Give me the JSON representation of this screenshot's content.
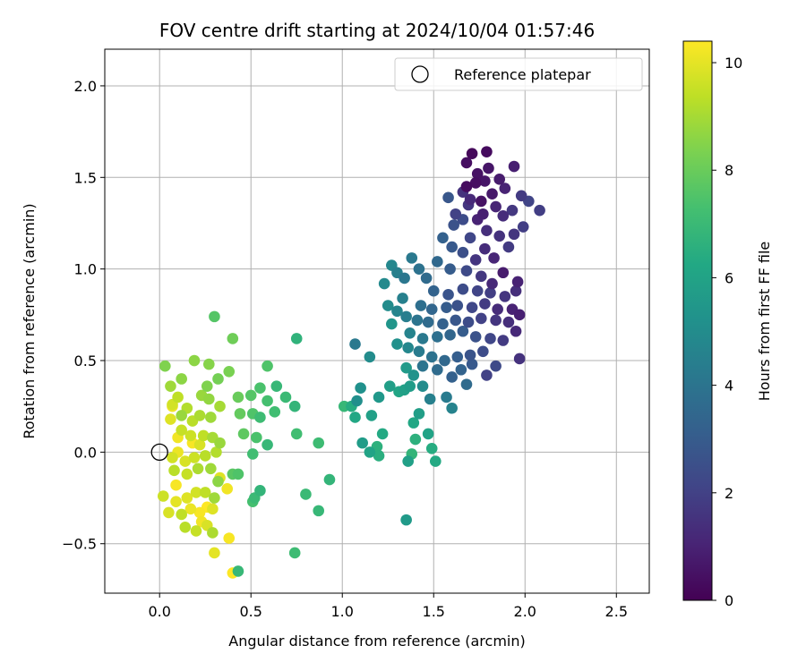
{
  "chart_data": {
    "type": "scatter",
    "title": "FOV centre drift starting at 2024/10/04 01:57:46",
    "xlabel": "Angular distance from reference (arcmin)",
    "ylabel": "Rotation from reference (arcmin)",
    "xlim": [
      -0.3,
      2.68
    ],
    "ylim": [
      -0.77,
      2.2
    ],
    "xticks": [
      0.0,
      0.5,
      1.0,
      1.5,
      2.0,
      2.5
    ],
    "xtick_labels": [
      "0.0",
      "0.5",
      "1.0",
      "1.5",
      "2.0",
      "2.5"
    ],
    "yticks": [
      -0.5,
      0.0,
      0.5,
      1.0,
      1.5,
      2.0
    ],
    "ytick_labels": [
      "−0.5",
      "0.0",
      "0.5",
      "1.0",
      "1.5",
      "2.0"
    ],
    "grid": true,
    "legend": {
      "position": "top-right",
      "entries": [
        "Reference platepar"
      ]
    },
    "reference_point": {
      "x": 0.0,
      "y": 0.0,
      "label": "Reference platepar"
    },
    "colorbar": {
      "label": "Hours from first FF file",
      "range": [
        0,
        10.4
      ],
      "ticks": [
        0,
        2,
        4,
        6,
        8,
        10
      ],
      "tick_labels": [
        "0",
        "2",
        "4",
        "6",
        "8",
        "10"
      ],
      "colormap": "viridis"
    },
    "points": [
      [
        1.71,
        1.63,
        0.2
      ],
      [
        1.79,
        1.64,
        0.3
      ],
      [
        1.68,
        1.58,
        0.4
      ],
      [
        1.74,
        1.52,
        0.5
      ],
      [
        1.8,
        1.55,
        0.6
      ],
      [
        1.86,
        1.49,
        0.8
      ],
      [
        1.78,
        1.48,
        0.6
      ],
      [
        1.73,
        1.47,
        0.4
      ],
      [
        1.68,
        1.45,
        0.3
      ],
      [
        1.94,
        1.56,
        0.9
      ],
      [
        1.76,
        1.37,
        0.5
      ],
      [
        1.82,
        1.41,
        0.7
      ],
      [
        1.89,
        1.44,
        1.0
      ],
      [
        1.66,
        1.42,
        1.5
      ],
      [
        1.7,
        1.38,
        1.2
      ],
      [
        1.98,
        1.4,
        1.8
      ],
      [
        1.84,
        1.34,
        1.1
      ],
      [
        1.77,
        1.3,
        0.9
      ],
      [
        1.69,
        1.35,
        1.6
      ],
      [
        1.62,
        1.3,
        2.0
      ],
      [
        1.88,
        1.29,
        1.3
      ],
      [
        1.93,
        1.32,
        1.7
      ],
      [
        2.02,
        1.37,
        2.1
      ],
      [
        2.08,
        1.32,
        1.9
      ],
      [
        1.74,
        1.27,
        1.0
      ],
      [
        1.58,
        1.39,
        2.8
      ],
      [
        1.66,
        1.27,
        2.4
      ],
      [
        1.61,
        1.24,
        2.6
      ],
      [
        1.79,
        1.21,
        1.4
      ],
      [
        1.86,
        1.18,
        1.5
      ],
      [
        1.94,
        1.19,
        1.6
      ],
      [
        1.99,
        1.23,
        1.9
      ],
      [
        1.91,
        1.12,
        1.8
      ],
      [
        1.7,
        1.17,
        2.2
      ],
      [
        1.78,
        1.11,
        1.3
      ],
      [
        1.83,
        1.06,
        1.1
      ],
      [
        1.73,
        1.05,
        1.6
      ],
      [
        1.66,
        1.09,
        2.5
      ],
      [
        1.6,
        1.12,
        2.9
      ],
      [
        1.55,
        1.17,
        3.2
      ],
      [
        1.52,
        1.04,
        3.5
      ],
      [
        1.59,
        1.0,
        3.0
      ],
      [
        1.68,
        0.99,
        2.3
      ],
      [
        1.76,
        0.96,
        1.7
      ],
      [
        1.82,
        0.92,
        1.2
      ],
      [
        1.88,
        0.98,
        0.8
      ],
      [
        1.96,
        0.93,
        1.0
      ],
      [
        1.95,
        0.88,
        1.4
      ],
      [
        1.89,
        0.85,
        1.6
      ],
      [
        1.81,
        0.87,
        1.9
      ],
      [
        1.74,
        0.88,
        2.1
      ],
      [
        1.66,
        0.89,
        2.4
      ],
      [
        1.58,
        0.86,
        2.7
      ],
      [
        1.5,
        0.88,
        3.3
      ],
      [
        1.46,
        0.95,
        3.6
      ],
      [
        1.42,
        1.0,
        3.9
      ],
      [
        1.38,
        1.06,
        4.2
      ],
      [
        1.34,
        0.95,
        4.1
      ],
      [
        1.3,
        0.98,
        4.5
      ],
      [
        1.27,
        1.02,
        4.8
      ],
      [
        1.43,
        0.8,
        3.8
      ],
      [
        1.49,
        0.78,
        3.4
      ],
      [
        1.57,
        0.79,
        3.0
      ],
      [
        1.63,
        0.8,
        2.6
      ],
      [
        1.71,
        0.79,
        2.2
      ],
      [
        1.78,
        0.81,
        1.8
      ],
      [
        1.85,
        0.78,
        1.3
      ],
      [
        1.93,
        0.78,
        1.0
      ],
      [
        1.97,
        0.75,
        0.9
      ],
      [
        1.91,
        0.71,
        1.4
      ],
      [
        1.84,
        0.72,
        1.6
      ],
      [
        1.76,
        0.73,
        2.0
      ],
      [
        1.69,
        0.71,
        2.4
      ],
      [
        1.62,
        0.72,
        2.8
      ],
      [
        1.55,
        0.7,
        3.2
      ],
      [
        1.47,
        0.71,
        3.6
      ],
      [
        1.41,
        0.72,
        4.0
      ],
      [
        1.35,
        0.74,
        4.4
      ],
      [
        1.3,
        0.77,
        4.7
      ],
      [
        1.25,
        0.8,
        5.0
      ],
      [
        1.37,
        0.65,
        4.6
      ],
      [
        1.44,
        0.62,
        4.2
      ],
      [
        1.52,
        0.63,
        3.8
      ],
      [
        1.59,
        0.64,
        3.4
      ],
      [
        1.66,
        0.66,
        3.0
      ],
      [
        1.73,
        0.63,
        2.6
      ],
      [
        1.81,
        0.62,
        2.2
      ],
      [
        1.88,
        0.61,
        1.8
      ],
      [
        1.95,
        0.66,
        1.2
      ],
      [
        1.77,
        0.55,
        2.4
      ],
      [
        1.7,
        0.53,
        2.7
      ],
      [
        1.63,
        0.52,
        3.1
      ],
      [
        1.56,
        0.5,
        3.5
      ],
      [
        1.49,
        0.52,
        3.9
      ],
      [
        1.42,
        0.55,
        4.3
      ],
      [
        1.36,
        0.57,
        4.8
      ],
      [
        1.3,
        0.59,
        5.2
      ],
      [
        1.27,
        0.7,
        5.4
      ],
      [
        1.23,
        0.92,
        4.9
      ],
      [
        1.33,
        0.84,
        4.5
      ],
      [
        1.44,
        0.47,
        4.0
      ],
      [
        1.52,
        0.45,
        3.6
      ],
      [
        1.6,
        0.41,
        3.2
      ],
      [
        1.68,
        0.37,
        3.6
      ],
      [
        1.79,
        0.42,
        2.0
      ],
      [
        1.84,
        0.47,
        2.3
      ],
      [
        1.97,
        0.51,
        1.5
      ],
      [
        1.71,
        0.48,
        2.9
      ],
      [
        1.65,
        0.45,
        3.3
      ],
      [
        1.57,
        0.3,
        4.3
      ],
      [
        1.6,
        0.24,
        4.6
      ],
      [
        1.48,
        0.29,
        4.5
      ],
      [
        1.35,
        0.46,
        5.6
      ],
      [
        1.39,
        0.42,
        5.3
      ],
      [
        1.44,
        0.36,
        5.0
      ],
      [
        1.37,
        0.36,
        5.7
      ],
      [
        1.34,
        0.34,
        5.9
      ],
      [
        1.31,
        0.33,
        6.1
      ],
      [
        1.26,
        0.36,
        5.8
      ],
      [
        1.2,
        0.3,
        5.5
      ],
      [
        1.16,
        0.2,
        5.9
      ],
      [
        1.22,
        0.1,
        6.3
      ],
      [
        1.19,
        0.03,
        6.6
      ],
      [
        1.15,
        0.0,
        6.0
      ],
      [
        1.11,
        0.05,
        5.7
      ],
      [
        1.07,
        0.19,
        6.2
      ],
      [
        1.05,
        0.25,
        6.4
      ],
      [
        1.08,
        0.28,
        5.1
      ],
      [
        1.1,
        0.35,
        5.2
      ],
      [
        1.07,
        0.59,
        4.2
      ],
      [
        1.15,
        0.52,
        5.0
      ],
      [
        1.39,
        0.16,
        6.2
      ],
      [
        1.42,
        0.21,
        5.8
      ],
      [
        1.47,
        0.1,
        6.0
      ],
      [
        1.49,
        0.02,
        6.4
      ],
      [
        1.51,
        -0.05,
        6.3
      ],
      [
        1.4,
        0.07,
        6.6
      ],
      [
        1.38,
        -0.01,
        6.8
      ],
      [
        1.36,
        -0.05,
        5.9
      ],
      [
        1.35,
        -0.37,
        5.6
      ],
      [
        1.2,
        -0.02,
        6.5
      ],
      [
        1.01,
        0.25,
        6.9
      ],
      [
        0.93,
        -0.15,
        6.8
      ],
      [
        0.87,
        0.05,
        7.1
      ],
      [
        0.8,
        -0.23,
        7.0
      ],
      [
        0.87,
        -0.32,
        6.9
      ],
      [
        0.74,
        -0.55,
        7.1
      ],
      [
        0.75,
        0.1,
        7.2
      ],
      [
        0.74,
        0.25,
        6.8
      ],
      [
        0.75,
        0.62,
        6.7
      ],
      [
        0.69,
        0.3,
        7.0
      ],
      [
        0.64,
        0.36,
        6.9
      ],
      [
        0.63,
        0.22,
        7.2
      ],
      [
        0.59,
        0.28,
        7.3
      ],
      [
        0.55,
        0.35,
        7.4
      ],
      [
        0.5,
        0.31,
        7.6
      ],
      [
        0.51,
        0.21,
        7.5
      ],
      [
        0.55,
        0.19,
        7.1
      ],
      [
        0.59,
        0.47,
        7.5
      ],
      [
        0.53,
        0.08,
        7.4
      ],
      [
        0.59,
        0.04,
        6.9
      ],
      [
        0.51,
        -0.01,
        7.2
      ],
      [
        0.46,
        0.1,
        7.8
      ],
      [
        0.52,
        -0.25,
        7.0
      ],
      [
        0.55,
        -0.21,
        6.8
      ],
      [
        0.51,
        -0.27,
        7.3
      ],
      [
        0.43,
        -0.65,
        6.9
      ],
      [
        0.4,
        -0.12,
        7.7
      ],
      [
        0.43,
        -0.12,
        7.5
      ],
      [
        0.43,
        0.3,
        8.0
      ],
      [
        0.44,
        0.21,
        7.9
      ],
      [
        0.38,
        0.44,
        8.3
      ],
      [
        0.3,
        0.74,
        7.6
      ],
      [
        0.4,
        0.62,
        8.1
      ],
      [
        0.27,
        0.48,
        8.5
      ],
      [
        0.19,
        0.5,
        8.6
      ],
      [
        0.32,
        0.4,
        8.2
      ],
      [
        0.26,
        0.36,
        8.4
      ],
      [
        0.23,
        0.31,
        8.8
      ],
      [
        0.27,
        0.29,
        8.7
      ],
      [
        0.33,
        0.25,
        9.0
      ],
      [
        0.28,
        0.19,
        8.9
      ],
      [
        0.22,
        0.2,
        9.1
      ],
      [
        0.18,
        0.17,
        9.3
      ],
      [
        0.15,
        0.24,
        9.2
      ],
      [
        0.12,
        0.2,
        8.8
      ],
      [
        0.12,
        0.4,
        8.6
      ],
      [
        0.03,
        0.47,
        8.4
      ],
      [
        0.06,
        0.36,
        8.9
      ],
      [
        0.1,
        0.3,
        9.4
      ],
      [
        0.07,
        0.26,
        9.7
      ],
      [
        0.12,
        0.12,
        9.5
      ],
      [
        0.17,
        0.09,
        9.6
      ],
      [
        0.24,
        0.09,
        9.4
      ],
      [
        0.29,
        0.08,
        9.0
      ],
      [
        0.33,
        0.05,
        8.8
      ],
      [
        0.31,
        0.0,
        9.2
      ],
      [
        0.25,
        -0.02,
        9.3
      ],
      [
        0.19,
        -0.03,
        9.6
      ],
      [
        0.14,
        -0.05,
        9.8
      ],
      [
        0.1,
        0.0,
        10.1
      ],
      [
        0.1,
        0.08,
        10.2
      ],
      [
        0.07,
        -0.03,
        9.7
      ],
      [
        0.08,
        -0.1,
        9.3
      ],
      [
        0.15,
        -0.12,
        9.5
      ],
      [
        0.21,
        -0.09,
        9.1
      ],
      [
        0.28,
        -0.09,
        8.9
      ],
      [
        0.32,
        -0.16,
        8.6
      ],
      [
        0.3,
        -0.25,
        8.9
      ],
      [
        0.25,
        -0.22,
        9.4
      ],
      [
        0.2,
        -0.22,
        9.7
      ],
      [
        0.15,
        -0.25,
        9.9
      ],
      [
        0.09,
        -0.27,
        10.0
      ],
      [
        0.05,
        -0.33,
        9.8
      ],
      [
        0.02,
        -0.24,
        9.6
      ],
      [
        0.12,
        -0.34,
        9.4
      ],
      [
        0.17,
        -0.31,
        10.1
      ],
      [
        0.22,
        -0.33,
        10.3
      ],
      [
        0.26,
        -0.3,
        10.4
      ],
      [
        0.29,
        -0.31,
        9.9
      ],
      [
        0.23,
        -0.38,
        10.2
      ],
      [
        0.26,
        -0.4,
        9.8
      ],
      [
        0.2,
        -0.43,
        9.5
      ],
      [
        0.14,
        -0.41,
        9.3
      ],
      [
        0.29,
        -0.44,
        9.1
      ],
      [
        0.3,
        -0.55,
        10.0
      ],
      [
        0.38,
        -0.47,
        10.3
      ],
      [
        0.4,
        -0.66,
        10.4
      ],
      [
        0.37,
        -0.2,
        10.2
      ],
      [
        0.33,
        -0.14,
        9.9
      ],
      [
        0.18,
        0.05,
        10.3
      ],
      [
        0.06,
        0.18,
        9.9
      ],
      [
        0.09,
        -0.18,
        10.3
      ],
      [
        0.07,
        0.25,
        10.2
      ],
      [
        0.22,
        0.04,
        9.8
      ]
    ]
  }
}
